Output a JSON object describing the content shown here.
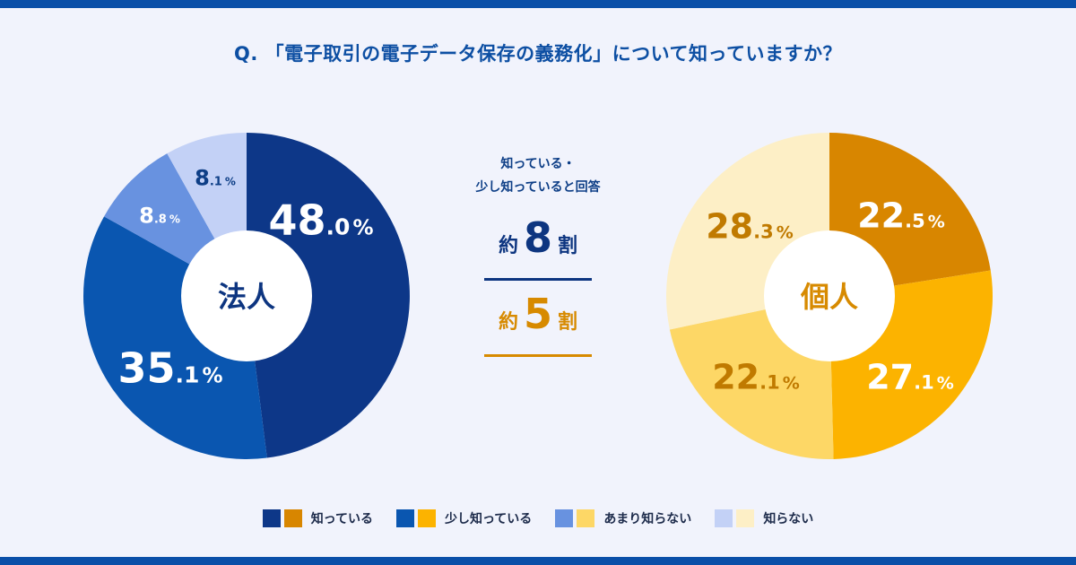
{
  "question": "Q. 「電子取引の電子データ保存の義務化」について知っていますか？",
  "center": {
    "caption_line1": "知っている・",
    "caption_line2": "少し知っていると回答",
    "corporate": {
      "prefix": "約",
      "number": "8",
      "suffix": "割"
    },
    "individual": {
      "prefix": "約",
      "number": "5",
      "suffix": "割"
    }
  },
  "colors": {
    "corporate": [
      "#0d3788",
      "#0a56b0",
      "#6892e0",
      "#c3d1f6"
    ],
    "individual": [
      "#d88600",
      "#fcb300",
      "#fdd766",
      "#fdefc6"
    ],
    "corporate_label": [
      "#ffffff",
      "#ffffff",
      "#ffffff",
      "#0d3e86"
    ],
    "individual_label": [
      "#ffffff",
      "#ffffff",
      "#c07a00",
      "#c07a00"
    ]
  },
  "legend": [
    "知っている",
    "少し知っている",
    "あまり知らない",
    "知らない"
  ],
  "chart_data": [
    {
      "type": "pie",
      "title": "法人",
      "categories": [
        "知っている",
        "少し知っている",
        "あまり知らない",
        "知らない"
      ],
      "values": [
        48.0,
        35.1,
        8.8,
        8.1
      ],
      "labels": [
        {
          "main": "48",
          "dec": ".0",
          "unit": "%"
        },
        {
          "main": "35",
          "dec": ".1",
          "unit": "%"
        },
        {
          "main": "8",
          "dec": ".8",
          "unit": "%"
        },
        {
          "main": "8",
          "dec": ".1",
          "unit": "%"
        }
      ]
    },
    {
      "type": "pie",
      "title": "個人",
      "categories": [
        "知っている",
        "少し知っている",
        "あまり知らない",
        "知らない"
      ],
      "values": [
        22.5,
        27.1,
        22.1,
        28.3
      ],
      "labels": [
        {
          "main": "22",
          "dec": ".5",
          "unit": "%"
        },
        {
          "main": "27",
          "dec": ".1",
          "unit": "%"
        },
        {
          "main": "22",
          "dec": ".1",
          "unit": "%"
        },
        {
          "main": "28",
          "dec": ".3",
          "unit": "%"
        }
      ]
    }
  ]
}
